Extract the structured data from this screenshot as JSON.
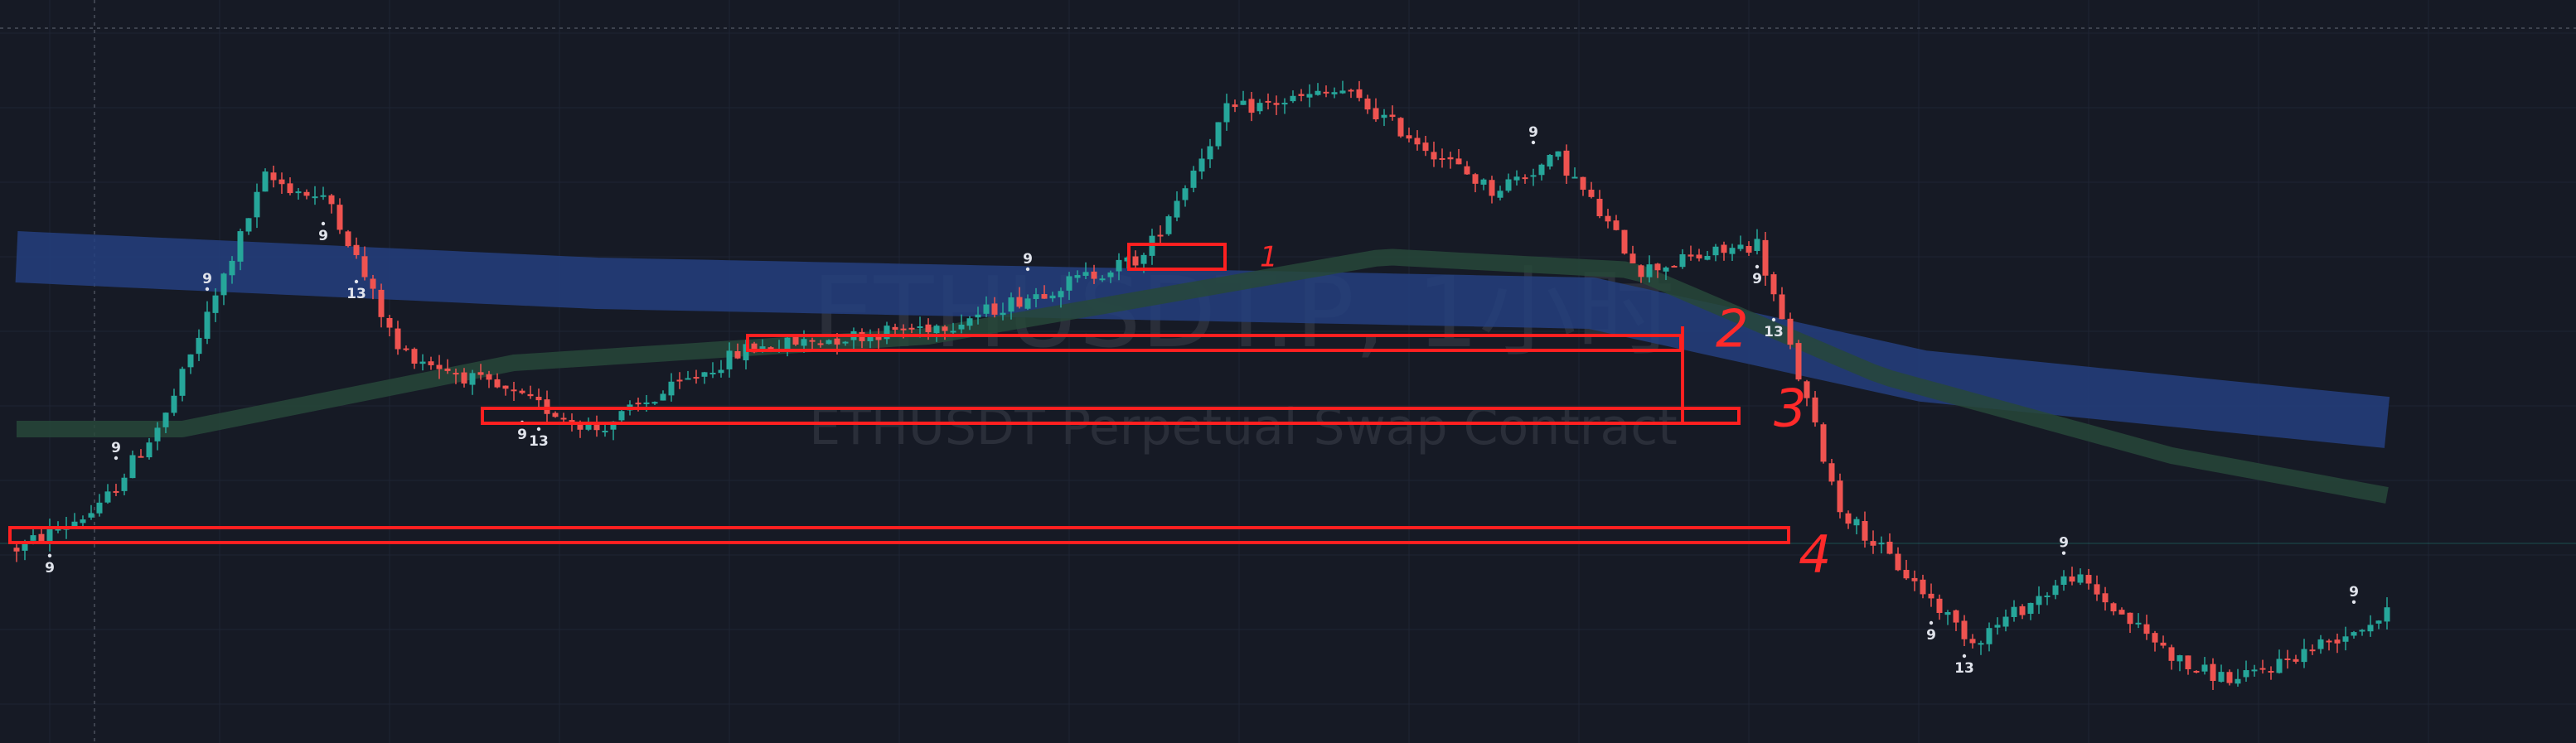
{
  "watermark": {
    "symbol": "ETHUSDT.P, 1小时",
    "description": "ETHUSDT Perpetual Swap Contract"
  },
  "colors": {
    "background": "#161a25",
    "grid": "#1f2433",
    "up": "#26a69a",
    "down": "#ef5350",
    "ribbon_blue": "#25407f",
    "ribbon_green": "#27483a",
    "annotation": "#ff2020",
    "watermark": "#2a2e39"
  },
  "chart_data": {
    "type": "candlestick",
    "symbol": "ETHUSDT.P",
    "timeframe": "1小时",
    "xlabel": "",
    "ylabel": "",
    "ylim": [
      0,
      100
    ],
    "x_count": 300,
    "price_path": [
      [
        0,
        26
      ],
      [
        10,
        32
      ],
      [
        18,
        46
      ],
      [
        30,
        82
      ],
      [
        38,
        78
      ],
      [
        46,
        56
      ],
      [
        58,
        50
      ],
      [
        70,
        44
      ],
      [
        88,
        56
      ],
      [
        113,
        60
      ],
      [
        122,
        64
      ],
      [
        136,
        70
      ],
      [
        146,
        92
      ],
      [
        160,
        95
      ],
      [
        178,
        80
      ],
      [
        186,
        85
      ],
      [
        196,
        68
      ],
      [
        210,
        72
      ],
      [
        220,
        32
      ],
      [
        236,
        12
      ],
      [
        248,
        22
      ],
      [
        262,
        8
      ],
      [
        268,
        6
      ],
      [
        286,
        16
      ]
    ],
    "ribbons": [
      {
        "color": "blue",
        "points": [
          [
            0,
            70
          ],
          [
            70,
            66
          ],
          [
            150,
            64
          ],
          [
            190,
            63
          ],
          [
            230,
            52
          ],
          [
            286,
            45
          ]
        ]
      },
      {
        "color": "green",
        "points": [
          [
            0,
            44
          ],
          [
            20,
            44
          ],
          [
            60,
            54
          ],
          [
            110,
            58
          ],
          [
            165,
            70
          ],
          [
            195,
            68
          ],
          [
            225,
            52
          ],
          [
            260,
            40
          ],
          [
            286,
            34
          ]
        ]
      }
    ],
    "td_labels": [
      {
        "i": 4,
        "text": "9",
        "pos": "below"
      },
      {
        "i": 12,
        "text": "9",
        "pos": "above"
      },
      {
        "i": 23,
        "text": "9",
        "pos": "above"
      },
      {
        "i": 37,
        "text": "9",
        "pos": "below"
      },
      {
        "i": 41,
        "text": "13",
        "pos": "below"
      },
      {
        "i": 61,
        "text": "9",
        "pos": "below"
      },
      {
        "i": 63,
        "text": "13",
        "pos": "below"
      },
      {
        "i": 122,
        "text": "9",
        "pos": "above"
      },
      {
        "i": 183,
        "text": "9",
        "pos": "above"
      },
      {
        "i": 210,
        "text": "9",
        "pos": "below"
      },
      {
        "i": 212,
        "text": "13",
        "pos": "below"
      },
      {
        "i": 231,
        "text": "9",
        "pos": "below"
      },
      {
        "i": 235,
        "text": "13",
        "pos": "below"
      },
      {
        "i": 247,
        "text": "9",
        "pos": "above"
      },
      {
        "i": 282,
        "text": "9",
        "pos": "above"
      }
    ],
    "zones": [
      {
        "label": "1",
        "x0": 135,
        "x1": 145,
        "y": 70,
        "note_i": 150,
        "note_y": 70
      },
      {
        "label": "2",
        "x0": 89,
        "x1": 200,
        "y": 57,
        "note_i": 205,
        "note_y": 59
      },
      {
        "label": "3",
        "x0": 57,
        "x1": 207,
        "y": 46,
        "note_i": 212,
        "note_y": 47
      },
      {
        "label": "4",
        "x0": 0,
        "x1": 213,
        "y": 28,
        "note_i": 215,
        "note_y": 25
      }
    ]
  }
}
